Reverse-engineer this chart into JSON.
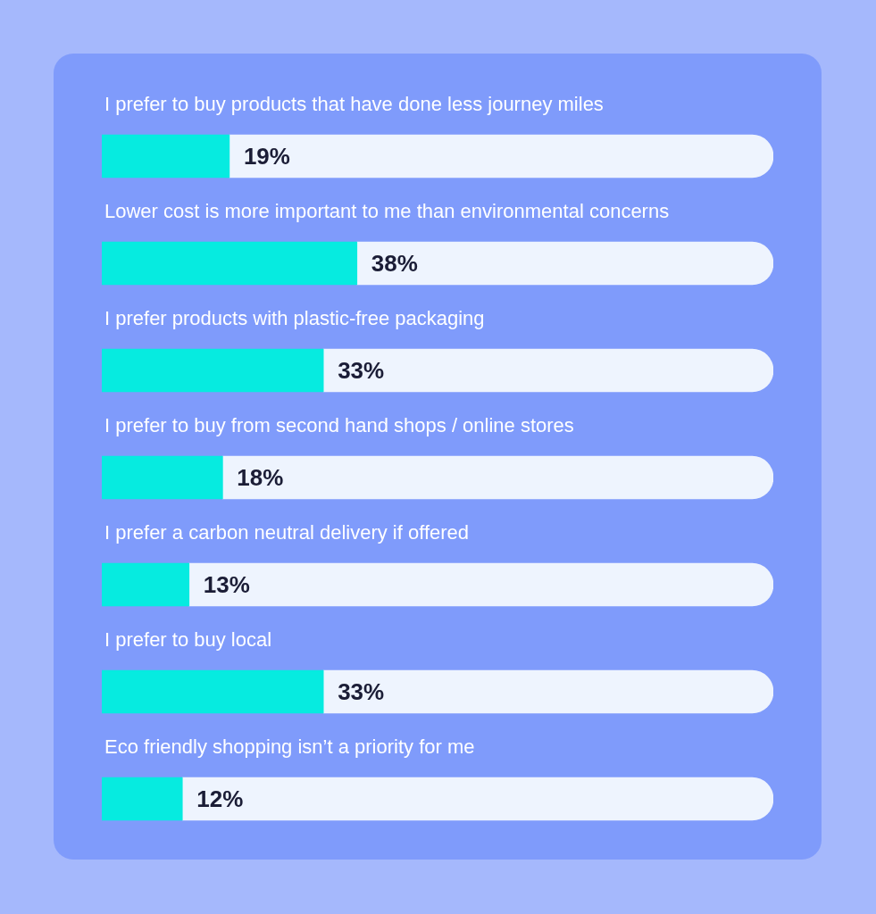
{
  "chart_data": {
    "type": "bar",
    "orientation": "horizontal",
    "stacked": true,
    "categories": [
      "I prefer to buy products that have done less journey miles",
      "Lower cost is more important to me than environmental concerns",
      "I prefer products with plastic-free packaging",
      "I prefer to buy from second hand shops / online stores",
      "I prefer a carbon neutral delivery if offered",
      "I prefer to buy local",
      "Eco friendly shopping isn’t a priority for me"
    ],
    "series": [
      {
        "color": "#06ebe0",
        "values": [
          19,
          38,
          33,
          18,
          13,
          33,
          12
        ],
        "value_labels": [
          "19%",
          "38%",
          "33%",
          "18%",
          "13%",
          "33%",
          "12%"
        ]
      },
      {
        "color": "#eef4fe",
        "values": [
          81,
          62,
          67,
          82,
          87,
          67,
          88
        ]
      }
    ],
    "xlim": [
      0,
      100
    ]
  }
}
